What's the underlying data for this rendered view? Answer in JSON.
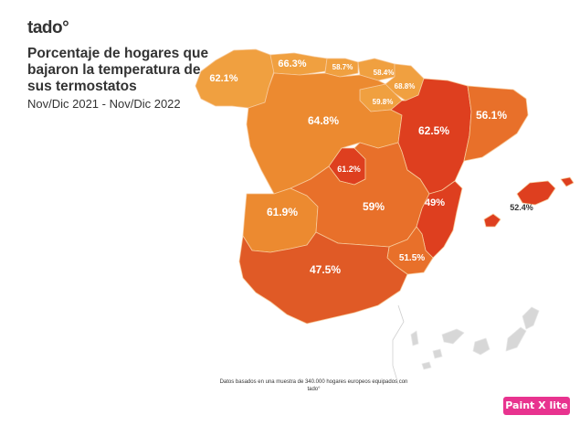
{
  "brand": "tado°",
  "title": "Porcentaje de hogares que bajaron la temperatura de sus termostatos",
  "subtitle": "Nov/Dic 2021 - Nov/Dic 2022",
  "footnote": "Datos basados en una muestra de 340.000 hogares europeos equipados con tado°",
  "badge": "Paint X lite",
  "colors": {
    "light": "#f0a040",
    "medium": "#ec8a30",
    "orange": "#e8702a",
    "dark": "#e05a26",
    "darkest": "#de3f1f",
    "canarias": "#d7d7d7"
  },
  "regions": [
    {
      "id": "galicia",
      "label": "62.1%",
      "value": 62.1
    },
    {
      "id": "asturias",
      "label": "66.3%",
      "value": 66.3
    },
    {
      "id": "cantabria",
      "label": "58.7%",
      "value": 58.7
    },
    {
      "id": "pais-vasco",
      "label": "58.4%",
      "value": 58.4
    },
    {
      "id": "navarra",
      "label": "68.8%",
      "value": 68.8
    },
    {
      "id": "la-rioja",
      "label": "59.8%",
      "value": 59.8
    },
    {
      "id": "castilla-leon",
      "label": "64.8%",
      "value": 64.8
    },
    {
      "id": "aragon",
      "label": "62.5%",
      "value": 62.5
    },
    {
      "id": "cataluna",
      "label": "56.1%",
      "value": 56.1
    },
    {
      "id": "madrid",
      "label": "61.2%",
      "value": 61.2
    },
    {
      "id": "extremadura",
      "label": "61.9%",
      "value": 61.9
    },
    {
      "id": "castilla-la-mancha",
      "label": "59%",
      "value": 59
    },
    {
      "id": "valencia",
      "label": "49%",
      "value": 49
    },
    {
      "id": "andalucia",
      "label": "47.5%",
      "value": 47.5
    },
    {
      "id": "murcia",
      "label": "51.5%",
      "value": 51.5
    },
    {
      "id": "baleares",
      "label": "52.4%",
      "value": 52.4
    }
  ]
}
